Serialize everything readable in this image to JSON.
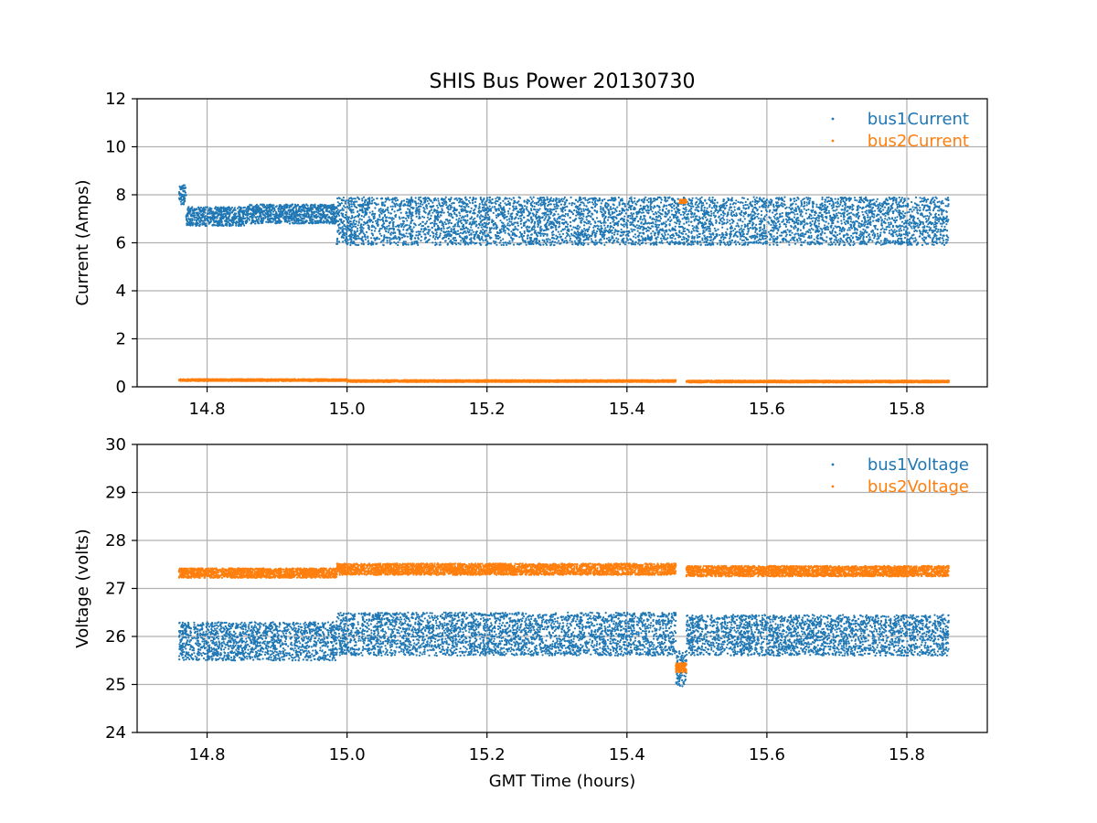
{
  "chart_data": [
    {
      "type": "scatter",
      "title": "SHIS Bus Power 20130730",
      "xlabel": "",
      "ylabel": "Current (Amps)",
      "xlim": [
        14.7,
        15.915
      ],
      "ylim": [
        0,
        12
      ],
      "x_ticks": [
        "14.8",
        "15.0",
        "15.2",
        "15.4",
        "15.6",
        "15.8"
      ],
      "y_ticks": [
        "0",
        "2",
        "4",
        "6",
        "8",
        "10",
        "12"
      ],
      "grid": true,
      "legend": "top-right",
      "series": [
        {
          "name": "bus1Current",
          "color": "#1f77b4",
          "segments": [
            {
              "x": [
                14.76,
                14.77
              ],
              "y_min": 7.6,
              "y_max": 8.4
            },
            {
              "x": [
                14.77,
                14.855
              ],
              "y_min": 6.7,
              "y_max": 7.5
            },
            {
              "x": [
                14.855,
                14.985
              ],
              "y_min": 6.8,
              "y_max": 7.6
            },
            {
              "x": [
                14.985,
                15.86
              ],
              "y_min": 5.9,
              "y_max": 7.9
            }
          ]
        },
        {
          "name": "bus2Current",
          "color": "#ff7f0e",
          "segments": [
            {
              "x": [
                14.76,
                15.0
              ],
              "y_min": 0.24,
              "y_max": 0.32
            },
            {
              "x": [
                15.0,
                15.47
              ],
              "y_min": 0.2,
              "y_max": 0.28
            },
            {
              "x": [
                15.475,
                15.485
              ],
              "y_min": 7.65,
              "y_max": 7.8
            },
            {
              "x": [
                15.485,
                15.86
              ],
              "y_min": 0.18,
              "y_max": 0.26
            }
          ]
        }
      ]
    },
    {
      "type": "scatter",
      "title": "",
      "xlabel": "GMT Time (hours)",
      "ylabel": "Voltage (volts)",
      "xlim": [
        14.7,
        15.915
      ],
      "ylim": [
        24,
        30
      ],
      "x_ticks": [
        "14.8",
        "15.0",
        "15.2",
        "15.4",
        "15.6",
        "15.8"
      ],
      "y_ticks": [
        "24",
        "25",
        "26",
        "27",
        "28",
        "29",
        "30"
      ],
      "grid": true,
      "legend": "top-right",
      "series": [
        {
          "name": "bus1Voltage",
          "color": "#1f77b4",
          "segments": [
            {
              "x": [
                14.76,
                14.985
              ],
              "y_min": 25.5,
              "y_max": 26.3
            },
            {
              "x": [
                14.985,
                15.47
              ],
              "y_min": 25.6,
              "y_max": 26.5
            },
            {
              "x": [
                15.47,
                15.485
              ],
              "y_min": 24.95,
              "y_max": 25.7
            },
            {
              "x": [
                15.485,
                15.86
              ],
              "y_min": 25.6,
              "y_max": 26.45
            }
          ]
        },
        {
          "name": "bus2Voltage",
          "color": "#ff7f0e",
          "segments": [
            {
              "x": [
                14.76,
                14.985
              ],
              "y_min": 27.22,
              "y_max": 27.42
            },
            {
              "x": [
                14.985,
                15.47
              ],
              "y_min": 27.28,
              "y_max": 27.52
            },
            {
              "x": [
                15.47,
                15.485
              ],
              "y_min": 25.25,
              "y_max": 25.45
            },
            {
              "x": [
                15.485,
                15.86
              ],
              "y_min": 27.25,
              "y_max": 27.47
            }
          ]
        }
      ]
    }
  ]
}
